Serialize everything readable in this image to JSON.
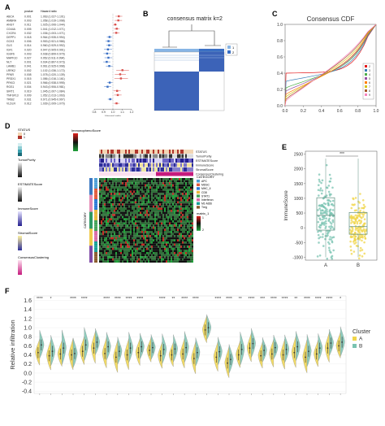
{
  "panel_labels": {
    "a": "A",
    "b": "B",
    "c": "C",
    "d": "D",
    "e": "E",
    "f": "F"
  },
  "panel_a": {
    "headers": [
      "",
      "pvalue",
      "Hazard ratio"
    ],
    "rows": [
      {
        "gene": "ABCA",
        "p": "0.001",
        "hr": "1.063 (1.027-1.101)"
      },
      {
        "gene": "AMBRA",
        "p": "0.003",
        "hr": "1.058 (1.019-1.098)"
      },
      {
        "gene": "ANGT",
        "p": "0.011",
        "hr": "1.025 (1.006-1.044)"
      },
      {
        "gene": "CD44A",
        "p": "0.005",
        "hr": "1.041 (1.012-1.071)"
      },
      {
        "gene": "CXCR4",
        "p": "0.032",
        "hr": "1.036 (1.003-1.071)"
      },
      {
        "gene": "DEPP1",
        "p": "0.018",
        "hr": "0.964 (0.935-0.994)"
      },
      {
        "gene": "GCK3",
        "p": "0.006",
        "hr": "0.953 (0.921-0.986)"
      },
      {
        "gene": "GLS",
        "p": "0.014",
        "hr": "0.960 (0.929-0.992)"
      },
      {
        "gene": "IGF1",
        "p": "0.020",
        "hr": "0.947 (0.905-0.991)"
      },
      {
        "gene": "IGSF6",
        "p": "0.003",
        "hr": "0.938 (0.899-0.979)"
      },
      {
        "gene": "MAPK10",
        "p": "0.027",
        "hr": "0.952 (0.911-0.994)"
      },
      {
        "gene": "NLT",
        "p": "0.001",
        "hr": "0.934 (0.897-0.973)"
      },
      {
        "gene": "LAMB1",
        "p": "0.041",
        "hr": "0.961 (0.925-0.998)"
      },
      {
        "gene": "LRRK2",
        "p": "0.002",
        "hr": "1.102 (1.036-1.172)"
      },
      {
        "gene": "PPAR",
        "p": "0.008",
        "hr": "1.078 (1.020-1.139)"
      },
      {
        "gene": "PRDX1",
        "p": "0.015",
        "hr": "1.086 (1.016-1.161)"
      },
      {
        "gene": "PRKCI",
        "p": "0.021",
        "hr": "0.966 (0.938-0.995)"
      },
      {
        "gene": "RGS1",
        "p": "0.004",
        "hr": "0.943 (0.906-0.981)"
      },
      {
        "gene": "SIRT1",
        "p": "0.019",
        "hr": "1.045 (1.007-1.084)"
      },
      {
        "gene": "TNFSF13",
        "p": "0.009",
        "hr": "1.052 (1.013-1.093)"
      },
      {
        "gene": "TRIB2",
        "p": "0.031",
        "hr": "0.971 (0.945-0.997)"
      },
      {
        "gene": "VLDLR",
        "p": "0.012",
        "hr": "1.039 (1.009-1.070)"
      }
    ],
    "axis_ticks": [
      "0.8",
      "0.9",
      "1.0",
      "1.1",
      "1.2"
    ],
    "axis_label": "Hazard ratio",
    "hr_values": [
      1.063,
      1.058,
      1.025,
      1.041,
      1.036,
      0.964,
      0.953,
      0.96,
      0.947,
      0.938,
      0.952,
      0.934,
      0.961,
      1.102,
      1.078,
      1.086,
      0.966,
      0.943,
      1.045,
      1.052,
      0.971,
      1.039
    ],
    "hr_low": [
      1.027,
      1.019,
      1.006,
      1.012,
      1.003,
      0.935,
      0.921,
      0.929,
      0.905,
      0.899,
      0.911,
      0.897,
      0.925,
      1.036,
      1.02,
      1.016,
      0.938,
      0.906,
      1.007,
      1.013,
      0.945,
      1.009
    ],
    "hr_high": [
      1.101,
      1.098,
      1.044,
      1.071,
      1.071,
      0.994,
      0.986,
      0.992,
      0.991,
      0.979,
      0.994,
      0.973,
      0.998,
      1.172,
      1.139,
      1.161,
      0.995,
      0.981,
      1.084,
      1.093,
      0.997,
      1.07
    ],
    "colors": {
      "risk": "#d9534f",
      "protect": "#3a6fc4"
    }
  },
  "panel_b": {
    "title": "consensus matrix k=2",
    "legend": [
      "1",
      "2"
    ],
    "colors": {
      "cluster1": "#87b5e5",
      "cluster2": "#3a6fc4",
      "matrix": "#3c63b8"
    }
  },
  "panel_c": {
    "title": "Consensus CDF",
    "x_ticks": [
      "0.0",
      "0.2",
      "0.4",
      "0.6",
      "0.8",
      "1.0"
    ],
    "y_ticks": [
      "0.0",
      "0.2",
      "0.4",
      "0.6",
      "0.8",
      "1.0"
    ],
    "legend": [
      "2",
      "3",
      "4",
      "5",
      "6",
      "7",
      "8",
      "9"
    ],
    "colors": [
      "#e41a1c",
      "#377eb8",
      "#4daf4a",
      "#984ea3",
      "#ff7f00",
      "#d4c41b",
      "#a65628",
      "#f781bf"
    ]
  },
  "panel_d": {
    "legend_titles": [
      "STATUS",
      "TumorPurity",
      "ESTIMATEScore",
      "ImmuneScore",
      "StromalScore",
      "ConsensusClustering"
    ],
    "heatmap_legend_title": "ImmunophenoScore",
    "status_values": [
      "0",
      "1"
    ],
    "track_labels": [
      "STATUS",
      "TumorPurity",
      "ESTIMATEScore",
      "ImmuneScore",
      "StromalScore",
      "ConsensusClustering",
      "ImmunophenoScore"
    ],
    "category_title": "CATEGORY",
    "categories": [
      "APC",
      "MDSC",
      "MHC_II",
      "CD8",
      "STAT1",
      "Interferon",
      "M1-M2B",
      "Treg"
    ],
    "cluster_title": "matrix_1",
    "clusters": [
      "1",
      "2"
    ],
    "side_label": "CATEGORY"
  },
  "panel_e": {
    "chart_data": {
      "type": "box",
      "categories": [
        "A",
        "B"
      ],
      "ylabel": "ImmuneScore",
      "y_ticks": [
        -1000,
        -500,
        0,
        500,
        1000,
        1500,
        2000,
        2500
      ],
      "ylim": [
        -1100,
        2600
      ],
      "medians": [
        420,
        40
      ],
      "q1": [
        -80,
        -220
      ],
      "q3": [
        1020,
        520
      ],
      "significance": "***",
      "colors": [
        "#7ac3b1",
        "#f0d54a"
      ]
    }
  },
  "panel_f": {
    "chart_data": {
      "type": "violin",
      "ylabel": "Relative infiltration",
      "y_ticks": [
        "-0.4",
        "-0.2",
        "0.0",
        "0.2",
        "0.4",
        "0.6",
        "0.8",
        "1.0",
        "1.2",
        "1.4",
        "1.6"
      ],
      "ylim": [
        -0.45,
        1.7
      ],
      "legend_title": "Cluster",
      "legend": [
        "A",
        "B"
      ],
      "colors": [
        "#f0d54a",
        "#7ac3b1"
      ],
      "significance": [
        "****",
        "*",
        "",
        "****",
        "****",
        "",
        "****",
        "****",
        "****",
        "****",
        "",
        "****",
        "**",
        "****",
        "****",
        "",
        "****",
        "****",
        "**",
        "****",
        "***",
        "****",
        "****",
        "**",
        "****",
        "****",
        "****",
        "*"
      ],
      "medians_a": [
        0.45,
        0.38,
        0.42,
        0.4,
        0.48,
        0.55,
        0.43,
        0.35,
        0.4,
        0.45,
        0.5,
        0.38,
        0.4,
        0.42,
        0.32,
        0.95,
        0.35,
        0.22,
        0.4,
        0.55,
        0.38,
        0.42,
        0.4,
        0.45,
        0.35,
        0.42,
        0.55,
        0.6
      ],
      "medians_b": [
        0.62,
        0.48,
        0.55,
        0.43,
        0.62,
        0.68,
        0.58,
        0.48,
        0.55,
        0.58,
        0.56,
        0.52,
        0.53,
        0.56,
        0.45,
        1.0,
        0.47,
        0.3,
        0.52,
        0.65,
        0.5,
        0.56,
        0.52,
        0.58,
        0.48,
        0.55,
        0.66,
        0.68
      ]
    }
  }
}
